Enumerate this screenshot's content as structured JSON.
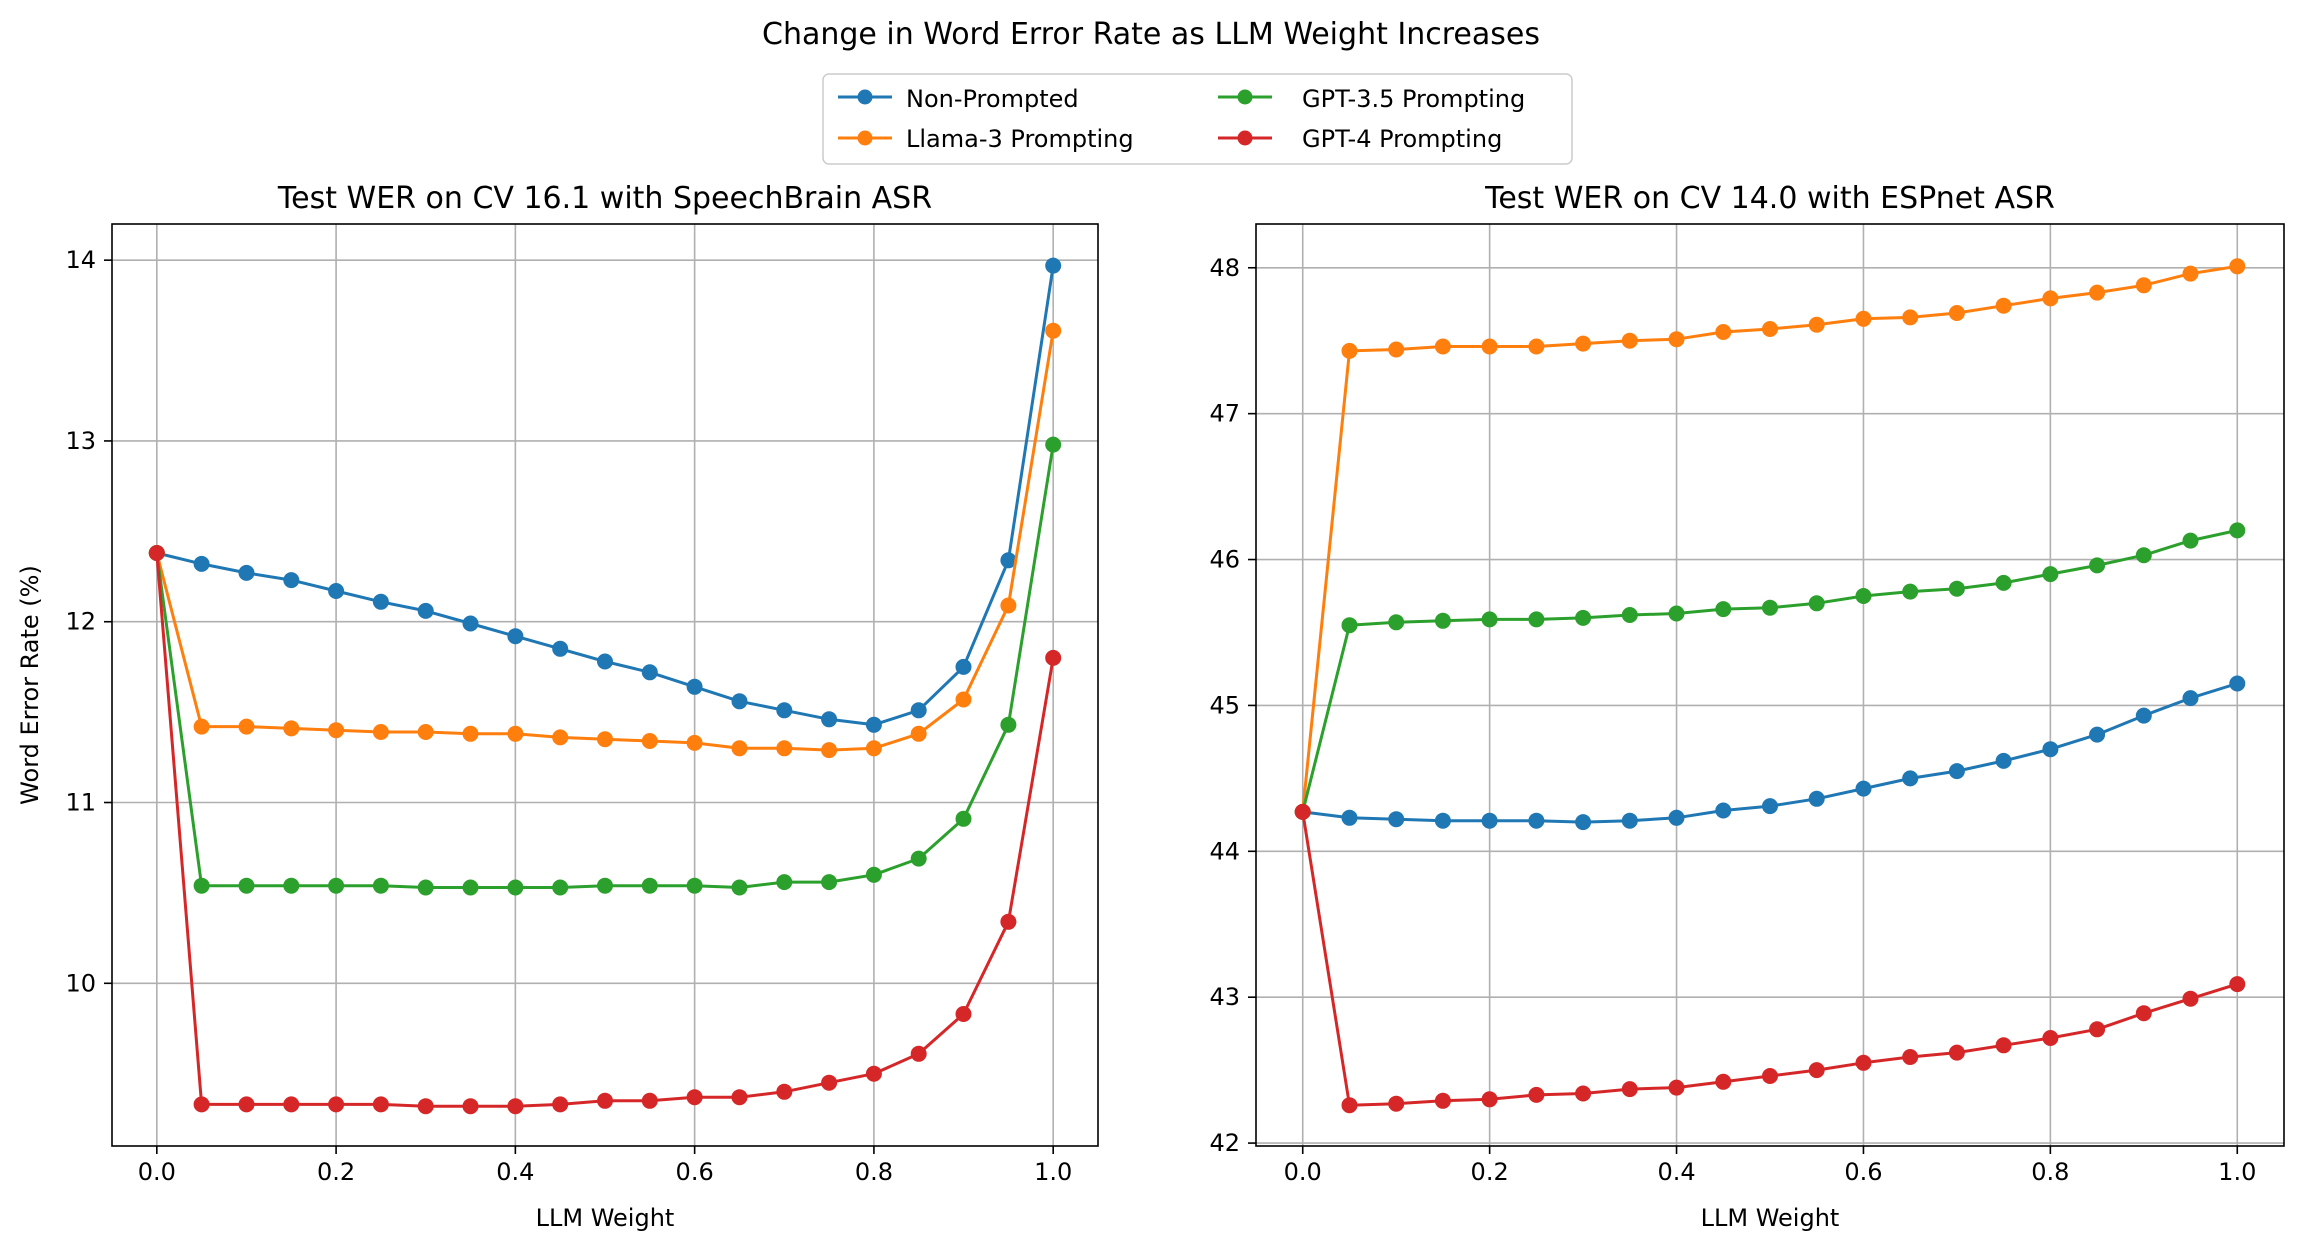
{
  "figure": {
    "suptitle": "Change in Word Error Rate as LLM Weight Increases"
  },
  "legend": {
    "placement": "top-center",
    "entries": [
      {
        "name": "Non-Prompted",
        "color": "#1f77b4"
      },
      {
        "name": "Llama-3 Prompting",
        "color": "#ff7f0e"
      },
      {
        "name": "GPT-3.5 Prompting",
        "color": "#2ca02c"
      },
      {
        "name": "GPT-4 Prompting",
        "color": "#d62728"
      }
    ]
  },
  "chart_data": [
    {
      "type": "line",
      "title": "Test WER on CV 16.1 with SpeechBrain ASR",
      "xlabel": "LLM Weight",
      "ylabel": "Word Error Rate (%)",
      "xlim": [
        -0.05,
        1.05
      ],
      "ylim": [
        9.1,
        14.2
      ],
      "xticks": [
        0.0,
        0.2,
        0.4,
        0.6,
        0.8,
        1.0
      ],
      "xtick_labels": [
        "0.0",
        "0.2",
        "0.4",
        "0.6",
        "0.8",
        "1.0"
      ],
      "yticks": [
        10,
        11,
        12,
        13,
        14
      ],
      "ytick_labels": [
        "10",
        "11",
        "12",
        "13",
        "14"
      ],
      "grid": true,
      "x": [
        0.0,
        0.05,
        0.1,
        0.15,
        0.2,
        0.25,
        0.3,
        0.35,
        0.4,
        0.45,
        0.5,
        0.55,
        0.6,
        0.65,
        0.7,
        0.75,
        0.8,
        0.85,
        0.9,
        0.95,
        1.0
      ],
      "series": [
        {
          "name": "Non-Prompted",
          "color": "#1f77b4",
          "values": [
            12.38,
            12.32,
            12.27,
            12.23,
            12.17,
            12.11,
            12.06,
            11.99,
            11.92,
            11.85,
            11.78,
            11.72,
            11.64,
            11.56,
            11.51,
            11.46,
            11.43,
            11.51,
            11.75,
            12.34,
            13.97
          ]
        },
        {
          "name": "Llama-3 Prompting",
          "color": "#ff7f0e",
          "values": [
            12.38,
            11.42,
            11.42,
            11.41,
            11.4,
            11.39,
            11.39,
            11.38,
            11.38,
            11.36,
            11.35,
            11.34,
            11.33,
            11.3,
            11.3,
            11.29,
            11.3,
            11.38,
            11.57,
            12.09,
            13.61
          ]
        },
        {
          "name": "GPT-3.5 Prompting",
          "color": "#2ca02c",
          "values": [
            12.38,
            10.54,
            10.54,
            10.54,
            10.54,
            10.54,
            10.53,
            10.53,
            10.53,
            10.53,
            10.54,
            10.54,
            10.54,
            10.53,
            10.56,
            10.56,
            10.6,
            10.69,
            10.91,
            11.43,
            12.98
          ]
        },
        {
          "name": "GPT-4 Prompting",
          "color": "#d62728",
          "values": [
            12.38,
            9.33,
            9.33,
            9.33,
            9.33,
            9.33,
            9.32,
            9.32,
            9.32,
            9.33,
            9.35,
            9.35,
            9.37,
            9.37,
            9.4,
            9.45,
            9.5,
            9.61,
            9.83,
            10.34,
            11.8
          ]
        }
      ]
    },
    {
      "type": "line",
      "title": "Test WER on CV 14.0 with ESPnet ASR",
      "xlabel": "LLM Weight",
      "ylabel": "",
      "xlim": [
        -0.05,
        1.05
      ],
      "ylim": [
        41.98,
        48.3
      ],
      "xticks": [
        0.0,
        0.2,
        0.4,
        0.6,
        0.8,
        1.0
      ],
      "xtick_labels": [
        "0.0",
        "0.2",
        "0.4",
        "0.6",
        "0.8",
        "1.0"
      ],
      "yticks": [
        42,
        43,
        44,
        45,
        46,
        47,
        48
      ],
      "ytick_labels": [
        "42",
        "43",
        "44",
        "45",
        "46",
        "47",
        "48"
      ],
      "grid": true,
      "x": [
        0.0,
        0.05,
        0.1,
        0.15,
        0.2,
        0.25,
        0.3,
        0.35,
        0.4,
        0.45,
        0.5,
        0.55,
        0.6,
        0.65,
        0.7,
        0.75,
        0.8,
        0.85,
        0.9,
        0.95,
        1.0
      ],
      "series": [
        {
          "name": "Non-Prompted",
          "color": "#1f77b4",
          "values": [
            44.27,
            44.23,
            44.22,
            44.21,
            44.21,
            44.21,
            44.2,
            44.21,
            44.23,
            44.28,
            44.31,
            44.36,
            44.43,
            44.5,
            44.55,
            44.62,
            44.7,
            44.8,
            44.93,
            45.05,
            45.15
          ]
        },
        {
          "name": "Llama-3 Prompting",
          "color": "#ff7f0e",
          "values": [
            44.27,
            47.43,
            47.44,
            47.46,
            47.46,
            47.46,
            47.48,
            47.5,
            47.51,
            47.56,
            47.58,
            47.61,
            47.65,
            47.66,
            47.69,
            47.74,
            47.79,
            47.83,
            47.88,
            47.96,
            48.01
          ]
        },
        {
          "name": "GPT-3.5 Prompting",
          "color": "#2ca02c",
          "values": [
            44.27,
            45.55,
            45.57,
            45.58,
            45.59,
            45.59,
            45.6,
            45.62,
            45.63,
            45.66,
            45.67,
            45.7,
            45.75,
            45.78,
            45.8,
            45.84,
            45.9,
            45.96,
            46.03,
            46.13,
            46.2
          ]
        },
        {
          "name": "GPT-4 Prompting",
          "color": "#d62728",
          "values": [
            44.27,
            42.26,
            42.27,
            42.29,
            42.3,
            42.33,
            42.34,
            42.37,
            42.38,
            42.42,
            42.46,
            42.5,
            42.55,
            42.59,
            42.62,
            42.67,
            42.72,
            42.78,
            42.89,
            42.99,
            43.09
          ]
        }
      ]
    }
  ]
}
